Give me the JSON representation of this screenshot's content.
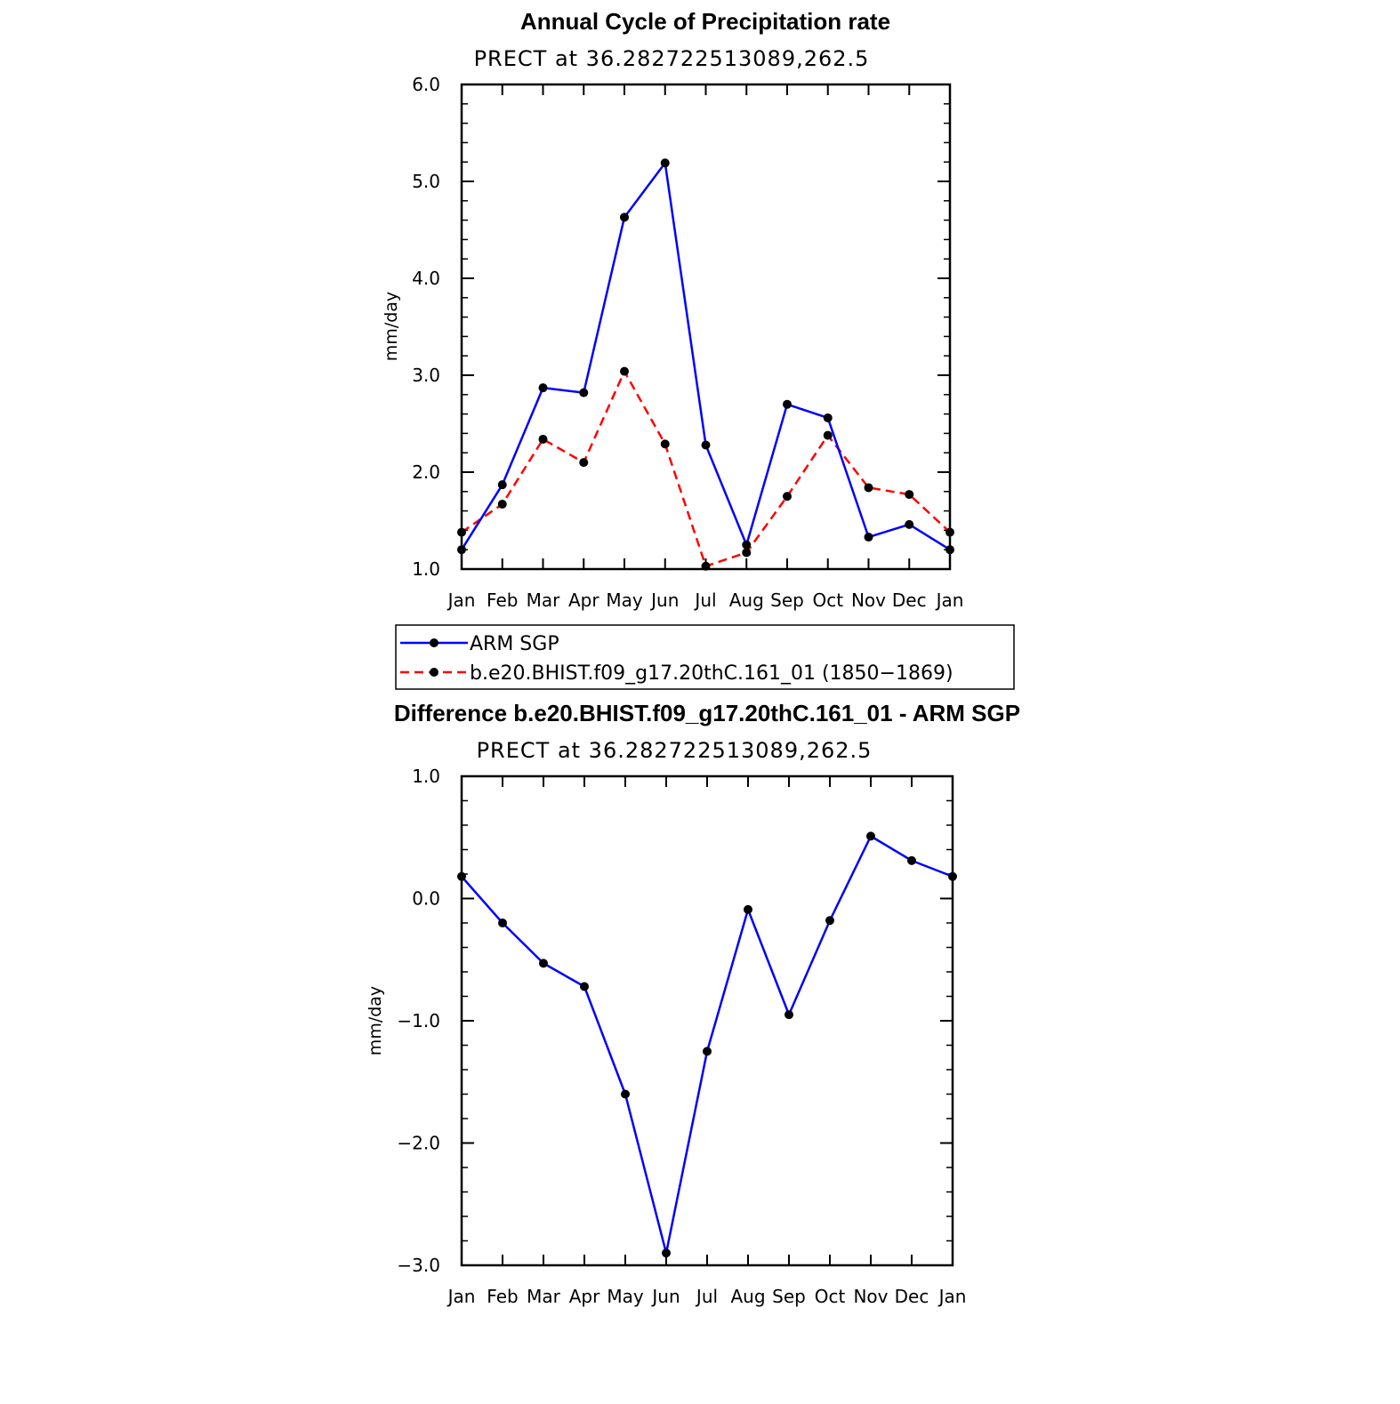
{
  "colors": {
    "series_blue": "#0000ff",
    "series_red": "#ff0000",
    "marker": "#000000",
    "axis": "#000000"
  },
  "chart_data": [
    {
      "type": "line",
      "title": "Annual Cycle of Precipitation rate",
      "subtitle": "PRECT at 36.282722513089,262.5",
      "xlabel": "",
      "ylabel": "mm/day",
      "categories": [
        "Jan",
        "Feb",
        "Mar",
        "Apr",
        "May",
        "Jun",
        "Jul",
        "Aug",
        "Sep",
        "Oct",
        "Nov",
        "Dec",
        "Jan"
      ],
      "ylim": [
        1.0,
        6.0
      ],
      "yticks": [
        "1.0",
        "2.0",
        "3.0",
        "4.0",
        "5.0",
        "6.0"
      ],
      "grid": false,
      "legend_position": "below",
      "series": [
        {
          "name": "ARM SGP",
          "style": "solid",
          "color": "#0000ff",
          "values": [
            1.2,
            1.87,
            2.87,
            2.82,
            4.63,
            5.19,
            2.28,
            1.25,
            2.7,
            2.56,
            1.33,
            1.46,
            1.2
          ]
        },
        {
          "name": "b.e20.BHIST.f09_g17.20thC.161_01 (1850−1869)",
          "style": "dashed",
          "color": "#ff0000",
          "values": [
            1.38,
            1.67,
            2.34,
            2.1,
            3.04,
            2.29,
            1.03,
            1.17,
            1.75,
            2.38,
            1.84,
            1.77,
            1.38
          ]
        }
      ]
    },
    {
      "type": "line",
      "title": "Difference b.e20.BHIST.f09_g17.20thC.161_01 - ARM SGP",
      "subtitle": "PRECT at 36.282722513089,262.5",
      "xlabel": "",
      "ylabel": "mm/day",
      "categories": [
        "Jan",
        "Feb",
        "Mar",
        "Apr",
        "May",
        "Jun",
        "Jul",
        "Aug",
        "Sep",
        "Oct",
        "Nov",
        "Dec",
        "Jan"
      ],
      "ylim": [
        -3.0,
        1.0
      ],
      "yticks": [
        "−3.0",
        "−2.0",
        "−1.0",
        "0.0",
        "1.0"
      ],
      "grid": false,
      "series": [
        {
          "style": "solid",
          "color": "#0000ff",
          "values": [
            0.18,
            -0.2,
            -0.53,
            -0.72,
            -1.6,
            -2.9,
            -1.25,
            -0.09,
            -0.95,
            -0.18,
            0.51,
            0.31,
            0.18
          ]
        }
      ]
    }
  ]
}
